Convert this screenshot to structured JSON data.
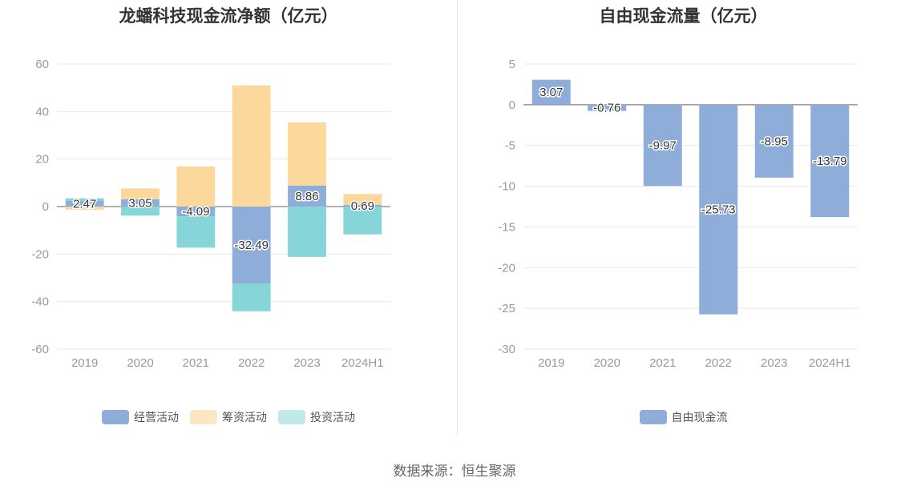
{
  "footer": {
    "source": "数据来源：恒生聚源"
  },
  "chart_data": [
    {
      "type": "bar",
      "stacked": true,
      "title": "龙蟠科技现金流净额（亿元）",
      "categories": [
        "2019",
        "2020",
        "2021",
        "2022",
        "2023",
        "2024H1"
      ],
      "ylim": [
        -60,
        60
      ],
      "yticks": [
        "60",
        "40",
        "20",
        "0",
        "-20",
        "-40",
        "-60"
      ],
      "grid": true,
      "legend_position": "bottom",
      "series": [
        {
          "name": "经营活动",
          "color": "#8eadd9",
          "values": [
            2.47,
            3.05,
            -4.09,
            -32.49,
            8.86,
            0.69
          ]
        },
        {
          "name": "筹资活动",
          "color": "#fdd89d",
          "values": [
            -1.3,
            4.6,
            16.9,
            51.0,
            26.6,
            4.6
          ]
        },
        {
          "name": "投资活动",
          "color": "#86d5d8",
          "values": [
            1.0,
            -3.8,
            -13.2,
            -11.6,
            -21.2,
            -11.7
          ]
        }
      ],
      "data_labels": [
        "2.47",
        "3.05",
        "-4.09",
        "-32.49",
        "8.86",
        "0.69"
      ]
    },
    {
      "type": "bar",
      "title": "自由现金流量（亿元）",
      "categories": [
        "2019",
        "2020",
        "2021",
        "2022",
        "2023",
        "2024H1"
      ],
      "ylim": [
        -30,
        5
      ],
      "yticks": [
        "5",
        "0",
        "-5",
        "-10",
        "-15",
        "-20",
        "-25",
        "-30"
      ],
      "grid": true,
      "legend_position": "bottom",
      "series": [
        {
          "name": "自由现金流",
          "color": "#8eadd9",
          "values": [
            3.07,
            -0.76,
            -9.97,
            -25.73,
            -8.95,
            -13.79
          ]
        }
      ],
      "data_labels": [
        "3.07",
        "-0.76",
        "-9.97",
        "-25.73",
        "-8.95",
        "-13.79"
      ]
    }
  ]
}
